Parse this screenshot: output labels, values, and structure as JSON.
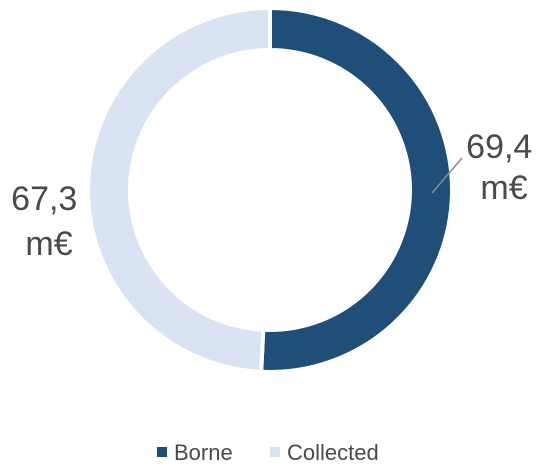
{
  "chart_data": {
    "type": "pie",
    "donut": true,
    "title": "",
    "categories": [
      "Borne",
      "Collected"
    ],
    "values": [
      69.4,
      67.3
    ],
    "unit": "m€",
    "data_labels": [
      {
        "value": "69,4",
        "unit": "m€"
      },
      {
        "value": "67,3",
        "unit": "m€"
      }
    ],
    "colors": [
      "#1f4e79",
      "#dae3f3"
    ],
    "legend": {
      "position": "bottom",
      "entries": [
        "Borne",
        "Collected"
      ]
    }
  }
}
